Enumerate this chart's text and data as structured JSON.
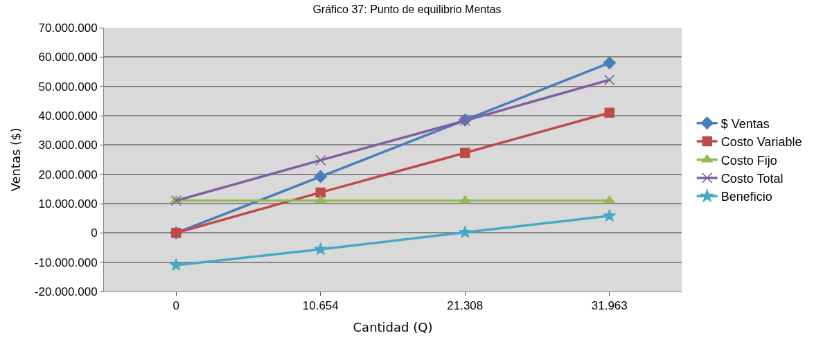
{
  "chart_data": {
    "type": "line",
    "title": "Gráfico 37: Punto de equilibrio Mentas",
    "xlabel": "Cantidad (Q)",
    "ylabel": "Ventas ($)",
    "categories": [
      "0",
      "10.654",
      "21.308",
      "31.963"
    ],
    "series": [
      {
        "name": "$ Ventas",
        "color": "#4a7ebb",
        "marker": "diamond",
        "values": [
          0,
          19200000,
          38500000,
          58000000
        ]
      },
      {
        "name": "Costo Variable",
        "color": "#be4b48",
        "marker": "square",
        "values": [
          0,
          13800000,
          27300000,
          41000000
        ]
      },
      {
        "name": "Costo Fijo",
        "color": "#98b954",
        "marker": "triangle",
        "values": [
          11000000,
          11000000,
          11000000,
          11000000
        ]
      },
      {
        "name": "Costo Total",
        "color": "#7d60a0",
        "marker": "cross",
        "values": [
          11000000,
          24800000,
          38300000,
          52200000
        ]
      },
      {
        "name": "Beneficio",
        "color": "#46aac5",
        "marker": "star",
        "values": [
          -11000000,
          -5600000,
          200000,
          5800000
        ]
      }
    ],
    "ylim": [
      -20000000,
      70000000
    ],
    "yticks": [
      {
        "value": -20000000,
        "label": "-20.000.000"
      },
      {
        "value": -10000000,
        "label": "-10.000.000"
      },
      {
        "value": 0,
        "label": "0"
      },
      {
        "value": 10000000,
        "label": "10.000.000"
      },
      {
        "value": 20000000,
        "label": "20.000.000"
      },
      {
        "value": 30000000,
        "label": "30.000.000"
      },
      {
        "value": 40000000,
        "label": "40.000.000"
      },
      {
        "value": 50000000,
        "label": "50.000.000"
      },
      {
        "value": 60000000,
        "label": "60.000.000"
      },
      {
        "value": 70000000,
        "label": "70.000.000"
      }
    ],
    "grid": "y",
    "legend": "right"
  }
}
